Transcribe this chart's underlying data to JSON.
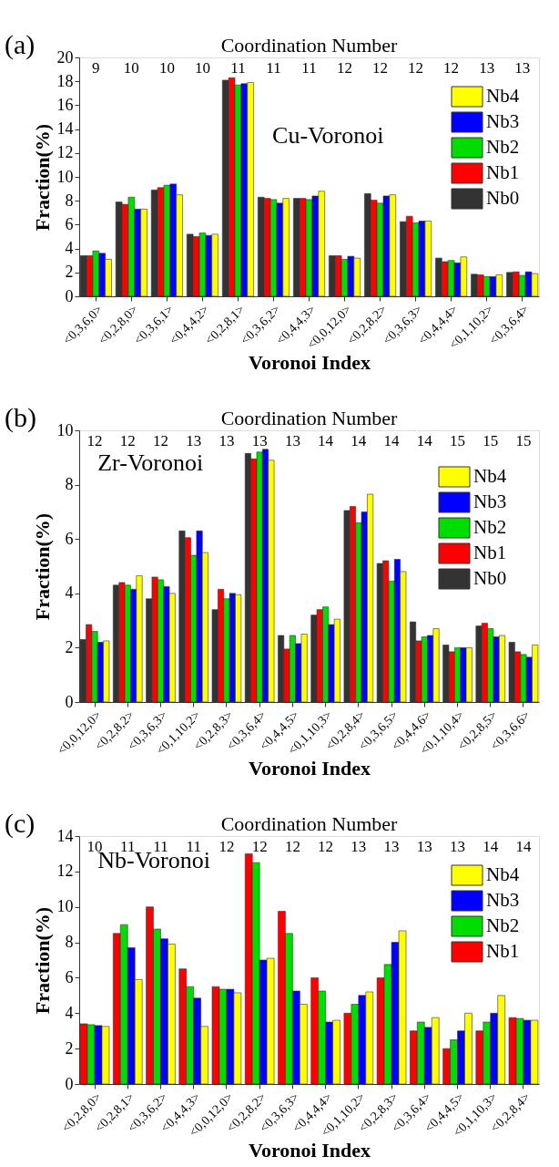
{
  "chart_data": [
    {
      "type": "bar",
      "xlabel": "Voronoi Index",
      "ylabel": "Fraction(%)",
      "x2label": "Coordination Number",
      "categories": [
        "<0,3,6,0>",
        "<0,2,8,0>",
        "<0,3,6,1>",
        "<0,4,4,2>",
        "<0,2,8,1>",
        "<0,3,6,2>",
        "<0,4,4,3>",
        "<0,0,12,0>",
        "<0,2,8,2>",
        "<0,3,6,3>",
        "<0,4,4,4>",
        "<0,1,10,2>",
        "<0,3,6,4>"
      ],
      "series": [
        {
          "name": "Nb0",
          "color": "#333333",
          "values": [
            3.4,
            7.9,
            8.9,
            5.2,
            18.1,
            8.3,
            8.2,
            3.4,
            8.6,
            6.25,
            3.2,
            1.85,
            2.0
          ]
        },
        {
          "name": "Nb1",
          "color": "#ff0000",
          "values": [
            3.4,
            7.7,
            9.1,
            5.0,
            18.3,
            8.2,
            8.2,
            3.4,
            8.05,
            6.7,
            2.9,
            1.8,
            2.05
          ]
        },
        {
          "name": "Nb2",
          "color": "#00dd00",
          "values": [
            3.8,
            8.3,
            9.3,
            5.3,
            17.7,
            8.1,
            8.1,
            3.1,
            7.8,
            6.15,
            3.0,
            1.65,
            1.75
          ]
        },
        {
          "name": "Nb3",
          "color": "#0000ff",
          "values": [
            3.6,
            7.3,
            9.4,
            5.1,
            17.8,
            7.8,
            8.4,
            3.35,
            8.4,
            6.3,
            2.8,
            1.65,
            2.05
          ]
        },
        {
          "name": "Nb4",
          "color": "#ffff00",
          "values": [
            3.1,
            7.3,
            8.5,
            5.2,
            17.9,
            8.2,
            8.8,
            3.2,
            8.5,
            6.3,
            3.3,
            1.8,
            1.9
          ]
        }
      ],
      "ylim": [
        0,
        20
      ],
      "yticks": [
        0,
        2,
        4,
        6,
        8,
        10,
        12,
        14,
        16,
        18,
        20
      ],
      "grid": false,
      "legend": "top right",
      "annotations": [
        "(a)",
        "Cu-Voronoi",
        "9",
        "10",
        "10",
        "10",
        "11",
        "11",
        "11",
        "12",
        "12",
        "12",
        "12",
        "13",
        "13"
      ]
    },
    {
      "type": "bar",
      "xlabel": "Voronoi Index",
      "ylabel": "Fraction(%)",
      "x2label": "Coordination Number",
      "categories": [
        "<0,0,12,0>",
        "<0,2,8,2>",
        "<0,3,6,3>",
        "<0,1,10,2>",
        "<0,2,8,3>",
        "<0,3,6,4>",
        "<0,4,4,5>",
        "<0,1,10,3>",
        "<0,2,8,4>",
        "<0,3,6,5>",
        "<0,4,4,6>",
        "<0,1,10,4>",
        "<0,2,8,5>",
        "<0,3,6,6>"
      ],
      "series": [
        {
          "name": "Nb0",
          "color": "#333333",
          "values": [
            2.3,
            4.3,
            3.8,
            6.3,
            3.4,
            9.15,
            2.45,
            3.2,
            7.05,
            5.1,
            2.95,
            2.1,
            2.8,
            2.2
          ]
        },
        {
          "name": "Nb1",
          "color": "#ff0000",
          "values": [
            2.85,
            4.4,
            4.6,
            6.05,
            4.15,
            8.95,
            1.95,
            3.4,
            7.2,
            5.2,
            2.25,
            1.85,
            2.9,
            1.85
          ]
        },
        {
          "name": "Nb2",
          "color": "#00dd00",
          "values": [
            2.6,
            4.3,
            4.5,
            5.4,
            3.8,
            9.2,
            2.45,
            3.5,
            6.6,
            4.45,
            2.4,
            2.0,
            2.7,
            1.75
          ]
        },
        {
          "name": "Nb3",
          "color": "#0000ff",
          "values": [
            2.2,
            4.15,
            4.25,
            6.3,
            4.0,
            9.3,
            2.15,
            2.85,
            7.0,
            5.25,
            2.45,
            2.0,
            2.4,
            1.65
          ]
        },
        {
          "name": "Nb4",
          "color": "#ffff00",
          "values": [
            2.25,
            4.65,
            4.0,
            5.5,
            3.95,
            8.9,
            2.5,
            3.05,
            7.65,
            4.8,
            2.7,
            2.0,
            2.45,
            2.1
          ]
        }
      ],
      "ylim": [
        0,
        10
      ],
      "yticks": [
        0,
        2,
        4,
        6,
        8,
        10
      ],
      "grid": false,
      "legend": "top right",
      "annotations": [
        "(b)",
        "Zr-Voronoi",
        "12",
        "12",
        "12",
        "13",
        "13",
        "13",
        "13",
        "14",
        "14",
        "14",
        "14",
        "15",
        "15",
        "15"
      ]
    },
    {
      "type": "bar",
      "xlabel": "Voronoi Index",
      "ylabel": "Fraction(%)",
      "x2label": "Coordination Number",
      "categories": [
        "<0,2,8,0>",
        "<0,2,8,1>",
        "<0,3,6,2>",
        "<0,4,4,3>",
        "<0,0,12,0>",
        "<0,2,8,2>",
        "<0,3,6,3>",
        "<0,4,4,4>",
        "<0,1,10,2>",
        "<0,2,8,3>",
        "<0,3,6,4>",
        "<0,4,4,5>",
        "<0,1,10,3>",
        "<0,2,8,4>"
      ],
      "series": [
        {
          "name": "Nb1",
          "color": "#ff0000",
          "values": [
            3.4,
            8.5,
            10.0,
            6.5,
            5.5,
            13.0,
            9.75,
            6.0,
            4.0,
            6.0,
            3.0,
            2.0,
            3.0,
            3.75
          ]
        },
        {
          "name": "Nb2",
          "color": "#00dd00",
          "values": [
            3.35,
            9.0,
            8.75,
            5.5,
            5.35,
            12.5,
            8.5,
            5.25,
            4.5,
            6.75,
            3.5,
            2.5,
            3.5,
            3.7
          ]
        },
        {
          "name": "Nb3",
          "color": "#0000ff",
          "values": [
            3.3,
            7.7,
            8.2,
            4.85,
            5.35,
            7.0,
            5.25,
            3.5,
            5.0,
            8.0,
            3.2,
            3.0,
            4.0,
            3.6
          ]
        },
        {
          "name": "Nb4",
          "color": "#ffff00",
          "values": [
            3.25,
            5.9,
            7.9,
            3.25,
            5.15,
            7.1,
            4.5,
            3.6,
            5.2,
            8.65,
            3.75,
            4.0,
            5.0,
            3.6
          ]
        }
      ],
      "ylim": [
        0,
        14
      ],
      "yticks": [
        0,
        2,
        4,
        6,
        8,
        10,
        12,
        14
      ],
      "grid": false,
      "legend": "top right",
      "annotations": [
        "(c)",
        "Nb-Voronoi",
        "10",
        "11",
        "11",
        "11",
        "12",
        "12",
        "12",
        "12",
        "13",
        "13",
        "13",
        "13",
        "14",
        "14"
      ]
    }
  ]
}
